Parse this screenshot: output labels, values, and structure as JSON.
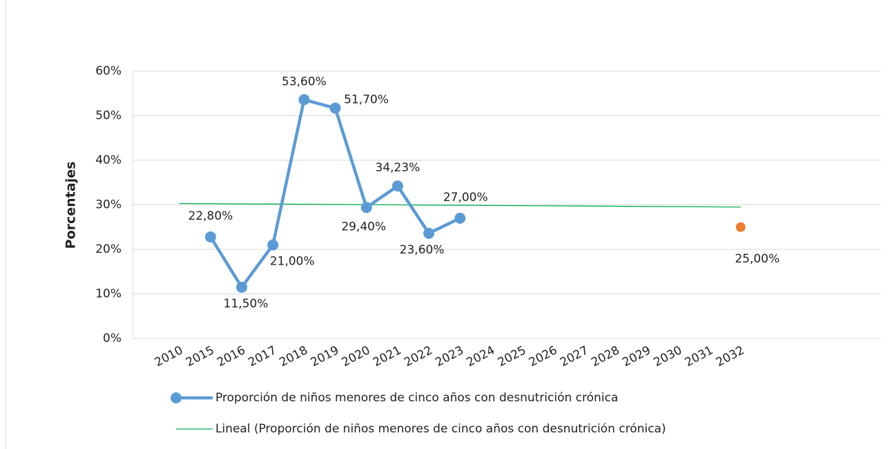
{
  "chart_data": {
    "type": "line",
    "y_axis_label": "Porcentajes",
    "categories": [
      null,
      "2010",
      "2015",
      "2016",
      "2017",
      "2018",
      "2019",
      "2020",
      "2021",
      "2022",
      "2023",
      "2024",
      "2025",
      "2026",
      "2027",
      "2028",
      "2029",
      "2030",
      "2031",
      "2032",
      null,
      null,
      null,
      null
    ],
    "series": [
      {
        "name": "Proporción de niños menores de cinco años con desnutrición crónica",
        "color": "#5b9bd5",
        "values": [
          null,
          null,
          22.8,
          11.5,
          21.0,
          53.6,
          51.7,
          29.4,
          34.23,
          23.6,
          27.0,
          null,
          null,
          null,
          null,
          null,
          null,
          null,
          null,
          null,
          null,
          null,
          null,
          null
        ],
        "value_labels": [
          null,
          null,
          "22,80%",
          "11,50%",
          "21,00%",
          "53,60%",
          "51,70%",
          "29,40%",
          "34,23%",
          "23,60%",
          "27,00%",
          null,
          null,
          null,
          null,
          null,
          null,
          null,
          null,
          null,
          null,
          null,
          null,
          null
        ]
      },
      {
        "color": "#ed7d31",
        "values": [
          null,
          null,
          null,
          null,
          null,
          null,
          null,
          null,
          null,
          null,
          null,
          null,
          null,
          null,
          null,
          null,
          null,
          null,
          null,
          25.0,
          null,
          null,
          null,
          null
        ],
        "value_labels": [
          null,
          null,
          null,
          null,
          null,
          null,
          null,
          null,
          null,
          null,
          null,
          null,
          null,
          null,
          null,
          null,
          null,
          null,
          null,
          "25,00%",
          null,
          null,
          null,
          null
        ]
      }
    ],
    "trendline": {
      "name": "Lineal (Proporción de niños menores de cinco años con desnutrición crónica)",
      "color": "#00b050",
      "x": [
        "2010",
        "2032"
      ],
      "values": [
        30.3,
        29.5
      ]
    },
    "ylim": [
      0,
      60
    ],
    "yticks": [
      {
        "value": 0,
        "label": "0%"
      },
      {
        "value": 10,
        "label": "10%"
      },
      {
        "value": 20,
        "label": "20%"
      },
      {
        "value": 30,
        "label": "30%"
      },
      {
        "value": 40,
        "label": "40%"
      },
      {
        "value": 50,
        "label": "50%"
      },
      {
        "value": 60,
        "label": "60%"
      }
    ],
    "grid": true,
    "legend": "bottom"
  }
}
